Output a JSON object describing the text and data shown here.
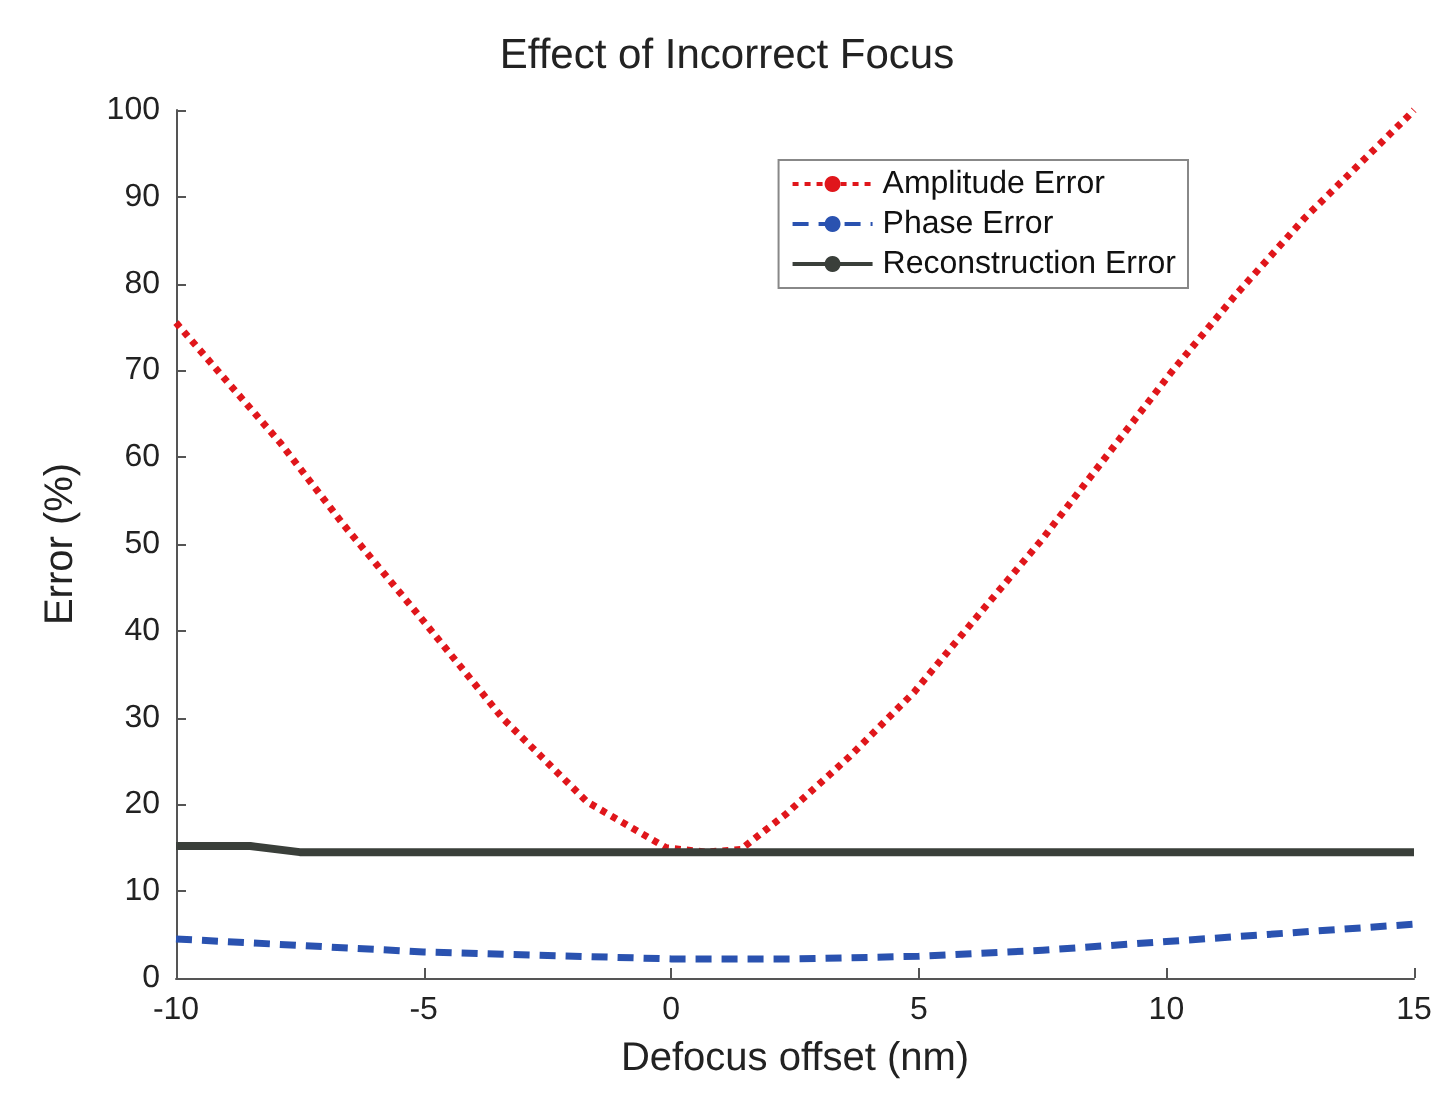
{
  "chart_data": {
    "type": "line",
    "title": "Effect of Incorrect Focus",
    "xlabel": "Defocus offset (nm)",
    "ylabel": "Error (%)",
    "xlim": [
      -10,
      15
    ],
    "xticks": [
      -10,
      -5,
      0,
      5,
      10,
      15
    ],
    "ylim": [
      0,
      100
    ],
    "yticks": [
      0,
      10,
      20,
      30,
      40,
      50,
      60,
      70,
      80,
      90,
      100
    ],
    "grid": false,
    "legend": "top right",
    "marker": "none",
    "series": [
      {
        "name": "Amplitude Error",
        "color": "#e0161b",
        "line_style": "dotted",
        "x": [
          -10,
          -7.9,
          -6.6,
          -5.1,
          -3.4,
          -1.7,
          -0.1,
          0.7,
          1.4,
          2.3,
          3.6,
          4.9,
          6.2,
          7.5,
          8.8,
          10.1,
          11.4,
          12.8,
          14.9,
          15
        ],
        "values": [
          75.5,
          61.7,
          52.1,
          41.8,
          29.9,
          20.3,
          15,
          14.5,
          14.8,
          18.8,
          25.5,
          32.9,
          41.8,
          50.6,
          60.2,
          69.8,
          78.7,
          87.6,
          99.4,
          100
        ]
      },
      {
        "name": "Phase Error",
        "color": "#2a52b0",
        "line_style": "dashed",
        "x": [
          -10,
          -5,
          0,
          2.5,
          5,
          7.5,
          10,
          12.5,
          15
        ],
        "values": [
          4.5,
          3,
          2.2,
          2.2,
          2.5,
          3.2,
          4.2,
          5.2,
          6.2
        ]
      },
      {
        "name": "Reconstruction Error",
        "color": "#3a3f3a",
        "line_style": "solid",
        "x": [
          -10,
          -8.5,
          -7.5,
          0,
          15
        ],
        "values": [
          15.2,
          15.2,
          14.5,
          14.5,
          14.5
        ]
      }
    ]
  }
}
